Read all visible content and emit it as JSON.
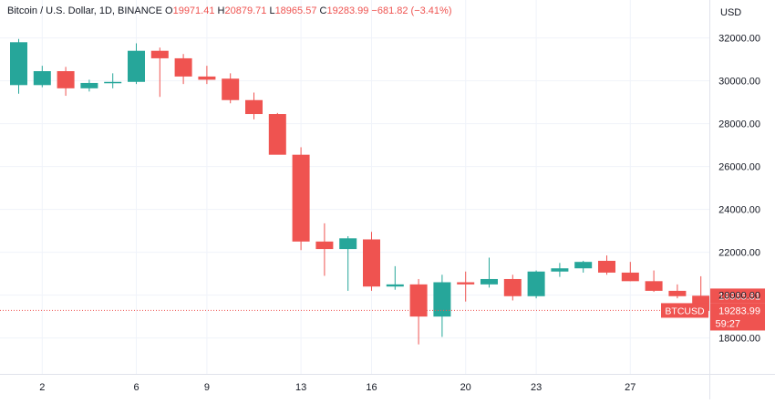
{
  "legend": {
    "symbol": "Bitcoin / U.S. Dollar, 1D, BINANCE",
    "o_key": "O",
    "o_val": "19971.41",
    "h_key": "H",
    "h_val": "20879.71",
    "l_key": "L",
    "l_val": "18965.57",
    "c_key": "C",
    "c_val": "19283.99",
    "change": "−681.82 (−3.41%)"
  },
  "currency_label": "USD",
  "price_tags": {
    "prev_close": "19965.81",
    "symbol": "BTCUSD",
    "last": "19283.99",
    "countdown": "59:27"
  },
  "colors": {
    "up": "#26a69a",
    "down": "#ef5350",
    "grid": "#f0f3fa",
    "axis_text": "#131722",
    "prev_close_bg": "#ef5350",
    "last_line": "#ef5350"
  },
  "chart_data": {
    "type": "candlestick",
    "y_unit": "USD",
    "ylim": [
      16000,
      33500
    ],
    "y_ticks": [
      18000,
      20000,
      22000,
      24000,
      26000,
      28000,
      30000,
      32000
    ],
    "y_tick_labels": [
      "18000.00",
      "20000.00",
      "22000.00",
      "24000.00",
      "26000.00",
      "28000.00",
      "30000.00",
      "32000.00"
    ],
    "x_ticks": [
      {
        "label": "2",
        "index": 1
      },
      {
        "label": "6",
        "index": 5
      },
      {
        "label": "9",
        "index": 8
      },
      {
        "label": "13",
        "index": 12
      },
      {
        "label": "16",
        "index": 15
      },
      {
        "label": "20",
        "index": 19
      },
      {
        "label": "23",
        "index": 22
      },
      {
        "label": "27",
        "index": 26
      }
    ],
    "grid": true,
    "last_price": 19283.99,
    "candles": [
      {
        "o": 29800,
        "h": 31950,
        "l": 29400,
        "c": 31800
      },
      {
        "o": 29800,
        "h": 30700,
        "l": 29700,
        "c": 30450
      },
      {
        "o": 30450,
        "h": 30650,
        "l": 29300,
        "c": 29650
      },
      {
        "o": 29650,
        "h": 30050,
        "l": 29500,
        "c": 29900
      },
      {
        "o": 29900,
        "h": 30350,
        "l": 29650,
        "c": 29950
      },
      {
        "o": 29950,
        "h": 31750,
        "l": 29850,
        "c": 31400
      },
      {
        "o": 31400,
        "h": 31550,
        "l": 29250,
        "c": 31050
      },
      {
        "o": 31050,
        "h": 31250,
        "l": 29850,
        "c": 30200
      },
      {
        "o": 30200,
        "h": 30700,
        "l": 29850,
        "c": 30050
      },
      {
        "o": 30100,
        "h": 30350,
        "l": 28950,
        "c": 29100
      },
      {
        "o": 29100,
        "h": 29450,
        "l": 28200,
        "c": 28450
      },
      {
        "o": 28450,
        "h": 28500,
        "l": 26650,
        "c": 26550
      },
      {
        "o": 26550,
        "h": 26900,
        "l": 22100,
        "c": 22500
      },
      {
        "o": 22500,
        "h": 23350,
        "l": 20900,
        "c": 22150
      },
      {
        "o": 22150,
        "h": 22750,
        "l": 20200,
        "c": 22650
      },
      {
        "o": 22600,
        "h": 22950,
        "l": 20200,
        "c": 20400
      },
      {
        "o": 20400,
        "h": 21350,
        "l": 20250,
        "c": 20500
      },
      {
        "o": 20500,
        "h": 20750,
        "l": 17700,
        "c": 19000
      },
      {
        "o": 19000,
        "h": 20950,
        "l": 18050,
        "c": 20600
      },
      {
        "o": 20600,
        "h": 21100,
        "l": 19700,
        "c": 20500
      },
      {
        "o": 20500,
        "h": 21750,
        "l": 20350,
        "c": 20750
      },
      {
        "o": 20750,
        "h": 20950,
        "l": 19750,
        "c": 19950
      },
      {
        "o": 19950,
        "h": 21150,
        "l": 19850,
        "c": 21100
      },
      {
        "o": 21100,
        "h": 21500,
        "l": 20850,
        "c": 21250
      },
      {
        "o": 21250,
        "h": 21600,
        "l": 21050,
        "c": 21550
      },
      {
        "o": 21600,
        "h": 21850,
        "l": 20950,
        "c": 21050
      },
      {
        "o": 21050,
        "h": 21550,
        "l": 20650,
        "c": 20650
      },
      {
        "o": 20650,
        "h": 21150,
        "l": 20150,
        "c": 20200
      },
      {
        "o": 20200,
        "h": 20500,
        "l": 19850,
        "c": 19950
      },
      {
        "o": 19971.41,
        "h": 20879.71,
        "l": 18965.57,
        "c": 19283.99
      }
    ]
  }
}
